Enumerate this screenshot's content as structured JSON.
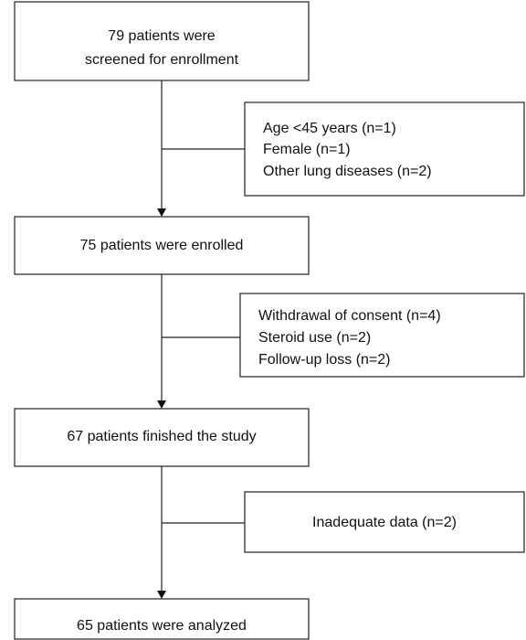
{
  "steps": [
    {
      "lines": [
        "79 patients were",
        "screened for enrollment"
      ]
    },
    {
      "lines": [
        "75 patients were enrolled"
      ]
    },
    {
      "lines": [
        "67 patients finished the study"
      ]
    },
    {
      "lines": [
        "65 patients were analyzed"
      ]
    }
  ],
  "exclusions": [
    {
      "lines": [
        "Age <45 years (n=1)",
        "Female (n=1)",
        "Other lung diseases (n=2)"
      ]
    },
    {
      "lines": [
        "Withdrawal of consent (n=4)",
        "Steroid use (n=2)",
        "Follow-up loss (n=2)"
      ]
    },
    {
      "lines": [
        "Inadequate data (n=2)"
      ]
    }
  ]
}
